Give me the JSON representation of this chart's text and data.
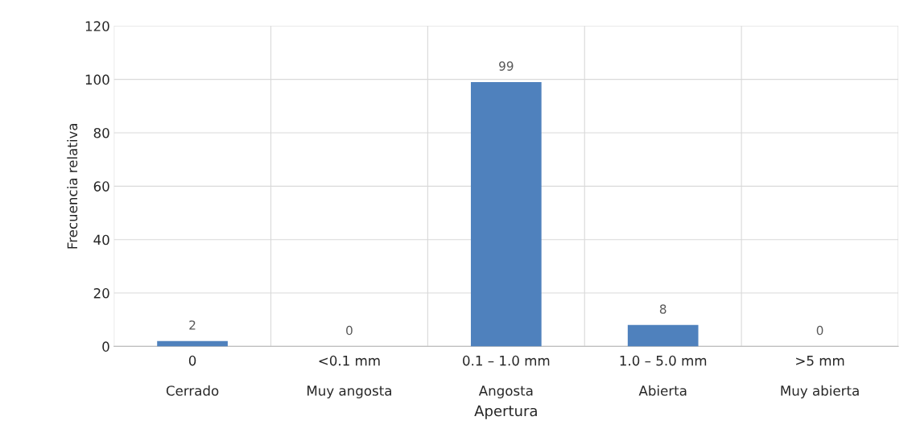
{
  "chart_data": {
    "type": "bar",
    "xlabel": "Apertura",
    "ylabel": "Frecuencia relativa",
    "categories": [
      "0\n\nCerrado",
      "<0.1 mm\n\nMuy angosta",
      "0.1 – 1.0 mm\n\nAngosta",
      "1.0 – 5.0 mm\n\nAbierta",
      ">5 mm\n\nMuy abierta"
    ],
    "values": [
      2,
      0,
      99,
      8,
      0
    ],
    "color": "#4f81bd",
    "ylim": [
      0,
      120
    ],
    "yticks": [
      0,
      20,
      40,
      60,
      80,
      100,
      120
    ],
    "grid": true,
    "data_labels": true
  }
}
